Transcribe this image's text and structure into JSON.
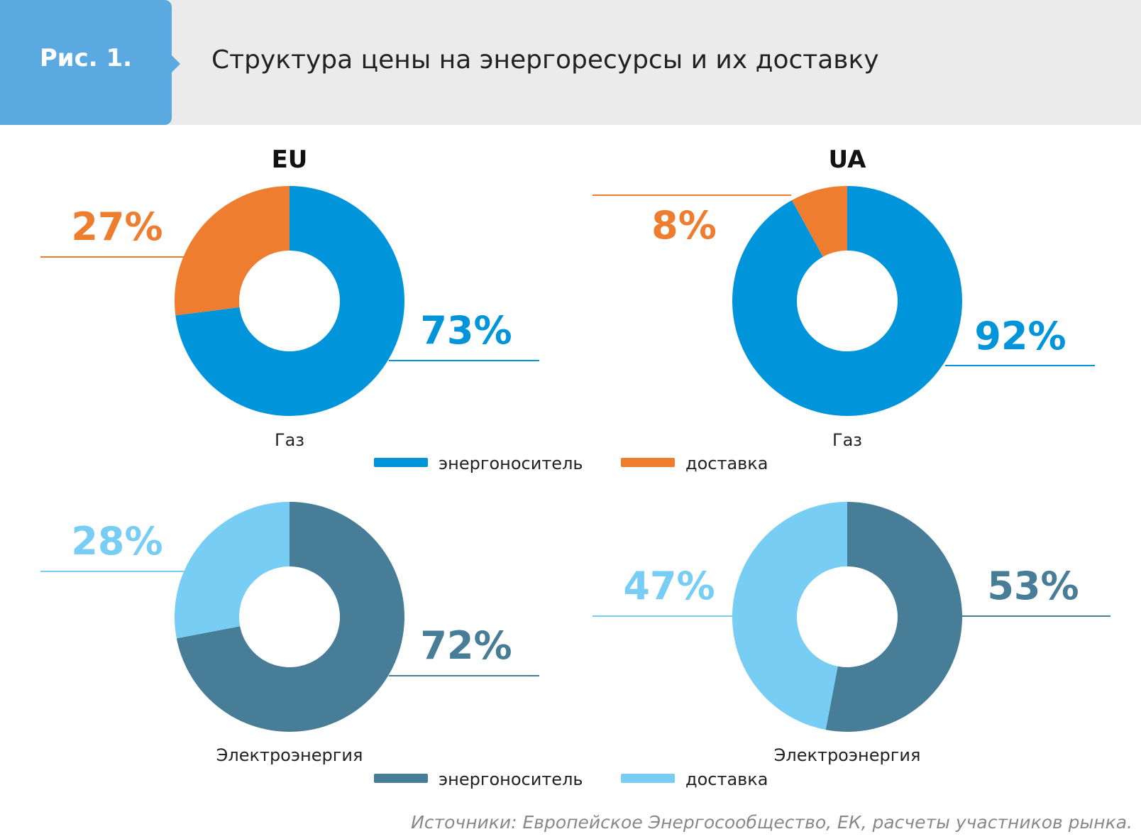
{
  "header": {
    "fig_label": "Рис. 1.",
    "title": "Структура цены на энергоресурсы и их доставку"
  },
  "regions": [
    "EU",
    "UA"
  ],
  "source": "Источники: Европейское Энергосообщество, ЕК, расчеты участников рынка.",
  "colors": {
    "tab": "#5aa9e0",
    "gas_energy": "#0095da",
    "gas_delivery": "#ee7d2f",
    "elec_energy": "#477d96",
    "elec_delivery": "#77cdf3"
  },
  "legends": {
    "gas": [
      {
        "label": "энергоноситель",
        "color": "#0095da"
      },
      {
        "label": "доставка",
        "color": "#ee7d2f"
      }
    ],
    "electricity": [
      {
        "label": "энергоноситель",
        "color": "#477d96"
      },
      {
        "label": "доставка",
        "color": "#77cdf3"
      }
    ]
  },
  "chart_data": [
    {
      "type": "pie",
      "region": "EU",
      "caption": "Газ",
      "slices": [
        {
          "label": "энергоноситель",
          "value": 73,
          "display": "73%",
          "color": "#0095da"
        },
        {
          "label": "доставка",
          "value": 27,
          "display": "27%",
          "color": "#ee7d2f"
        }
      ]
    },
    {
      "type": "pie",
      "region": "UA",
      "caption": "Газ",
      "slices": [
        {
          "label": "энергоноситель",
          "value": 92,
          "display": "92%",
          "color": "#0095da"
        },
        {
          "label": "доставка",
          "value": 8,
          "display": "8%",
          "color": "#ee7d2f"
        }
      ]
    },
    {
      "type": "pie",
      "region": "EU",
      "caption": "Электроэнергия",
      "slices": [
        {
          "label": "энергоноситель",
          "value": 72,
          "display": "72%",
          "color": "#477d96"
        },
        {
          "label": "доставка",
          "value": 28,
          "display": "28%",
          "color": "#77cdf3"
        }
      ]
    },
    {
      "type": "pie",
      "region": "UA",
      "caption": "Электроэнергия",
      "slices": [
        {
          "label": "энергоноситель",
          "value": 53,
          "display": "53%",
          "color": "#477d96"
        },
        {
          "label": "доставка",
          "value": 47,
          "display": "47%",
          "color": "#77cdf3"
        }
      ]
    }
  ]
}
